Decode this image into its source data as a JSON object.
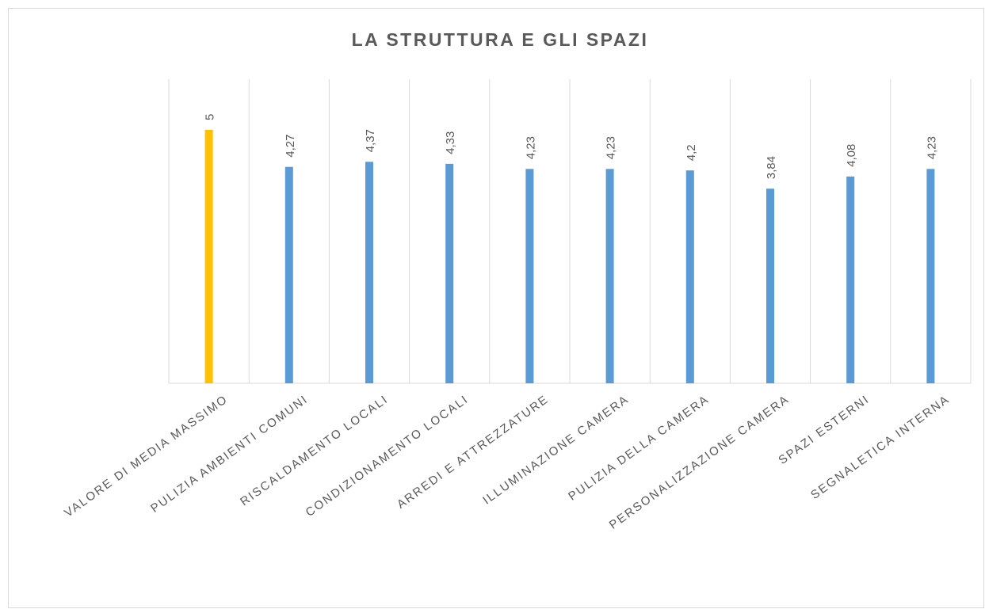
{
  "chart_data": {
    "type": "bar",
    "title": "LA STRUTTURA E GLI SPAZI",
    "categories": [
      "VALORE DI MEDIA MASSIMO",
      "PULIZIA AMBIENTI COMUNI",
      "RISCALDAMENTO LOCALI",
      "CONDIZIONAMENTO LOCALI",
      "ARREDI E ATTREZZATURE",
      "ILLUMINAZIONE CAMERA",
      "PULIZIA DELLA CAMERA",
      "PERSONALIZZAZIONE CAMERA",
      "SPAZI ESTERNI",
      "SEGNALETICA INTERNA"
    ],
    "values": [
      5,
      4.27,
      4.37,
      4.33,
      4.23,
      4.23,
      4.2,
      3.84,
      4.08,
      4.23
    ],
    "value_labels": [
      "5",
      "4,27",
      "4,37",
      "4,33",
      "4,23",
      "4,23",
      "4,2",
      "3,84",
      "4,08",
      "4,23"
    ],
    "colors": [
      "#ffc000",
      "#5b9bd5",
      "#5b9bd5",
      "#5b9bd5",
      "#5b9bd5",
      "#5b9bd5",
      "#5b9bd5",
      "#5b9bd5",
      "#5b9bd5",
      "#5b9bd5"
    ],
    "ylim": [
      0,
      6
    ],
    "grid": true
  }
}
